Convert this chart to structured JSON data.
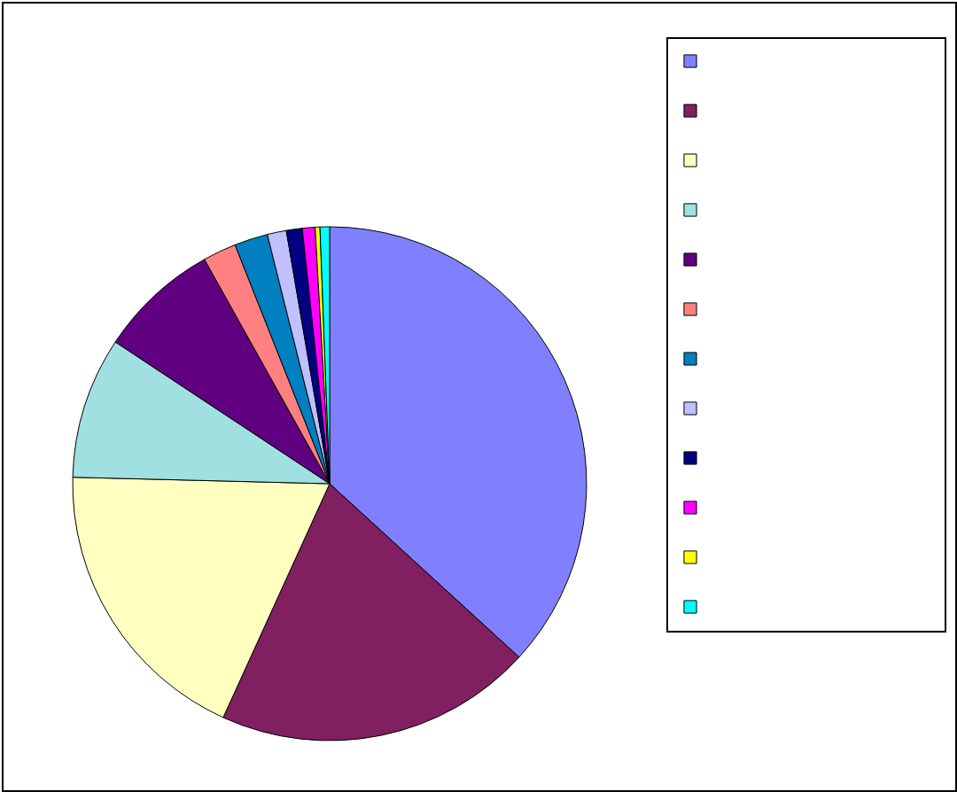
{
  "chart_data": {
    "type": "pie",
    "categories": [
      null,
      null,
      null,
      null,
      null,
      null,
      null,
      null,
      null,
      null,
      null,
      null
    ],
    "values": [
      36.8,
      20,
      18.6,
      8.9,
      7.6,
      2.1,
      2.1,
      1.2,
      1,
      0.8,
      0.3,
      0.6
    ],
    "colors": [
      "#8080ff",
      "#802060",
      "#ffffc0",
      "#a0e0e0",
      "#600080",
      "#ff8080",
      "#0080c0",
      "#c0c0ff",
      "#000080",
      "#ff00ff",
      "#ffff00",
      "#00ffff"
    ]
  }
}
